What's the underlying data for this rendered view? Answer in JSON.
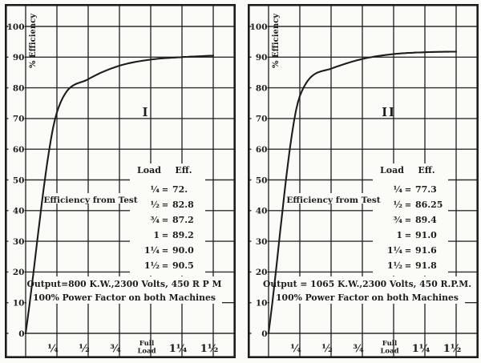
{
  "figure": {
    "background": "#fbfbf7",
    "ink": "#1d1d1d"
  },
  "chart_data": [
    {
      "type": "line",
      "panel_label": "I",
      "ylabel": "% Efficiency",
      "annotation": "Efficiency from Test",
      "x": [
        0,
        0.25,
        0.5,
        0.75,
        1.0,
        1.25,
        1.5
      ],
      "y": [
        0,
        72,
        82.8,
        87.2,
        89.2,
        90.0,
        90.5
      ],
      "ylim": [
        0,
        107
      ],
      "xlim": [
        0,
        1.67
      ],
      "grid": true,
      "y_ticks": [
        100,
        90,
        80,
        70,
        60,
        50,
        40,
        30,
        20,
        10,
        0
      ],
      "x_tick_labels": [
        "¼",
        "½",
        "¾",
        [
          "Full",
          "Load"
        ],
        "1¼",
        "1½"
      ],
      "legend_table": {
        "headers": [
          "Load",
          "Eff."
        ],
        "equals": "=",
        "rows": [
          [
            "¼",
            "72."
          ],
          [
            "½",
            "82.8"
          ],
          [
            "¾",
            "87.2"
          ],
          [
            "1",
            "89.2"
          ],
          [
            "1¼",
            "90.0"
          ],
          [
            "1½",
            "90.5"
          ]
        ]
      },
      "caption": [
        "Output=800 K.W.,2300 Volts, 450 R P M",
        "100% Power Factor on both Machines"
      ]
    },
    {
      "type": "line",
      "panel_label": "II",
      "ylabel": "% Efficiency",
      "annotation": "Efficiency from Test",
      "x": [
        0,
        0.25,
        0.5,
        0.75,
        1.0,
        1.25,
        1.5
      ],
      "y": [
        0,
        77.3,
        86.25,
        89.4,
        91.0,
        91.6,
        91.8
      ],
      "ylim": [
        0,
        107
      ],
      "xlim": [
        0,
        1.67
      ],
      "grid": true,
      "y_ticks": [
        100,
        90,
        80,
        70,
        60,
        50,
        40,
        30,
        20,
        10,
        0
      ],
      "x_tick_labels": [
        "¼",
        "½",
        "¾",
        [
          "Full",
          "Load"
        ],
        "1¼",
        "1½"
      ],
      "legend_table": {
        "headers": [
          "Load",
          "Eff."
        ],
        "equals": "=",
        "rows": [
          [
            "¼",
            "77.3"
          ],
          [
            "½",
            "86.25"
          ],
          [
            "¾",
            "89.4"
          ],
          [
            "1",
            "91.0"
          ],
          [
            "1¼",
            "91.6"
          ],
          [
            "1½",
            "91.8"
          ]
        ]
      },
      "caption": [
        "Output = 1065 K.W.,2300 Volts, 450 R.P.M.",
        "100% Power Factor on both Machines"
      ]
    }
  ]
}
